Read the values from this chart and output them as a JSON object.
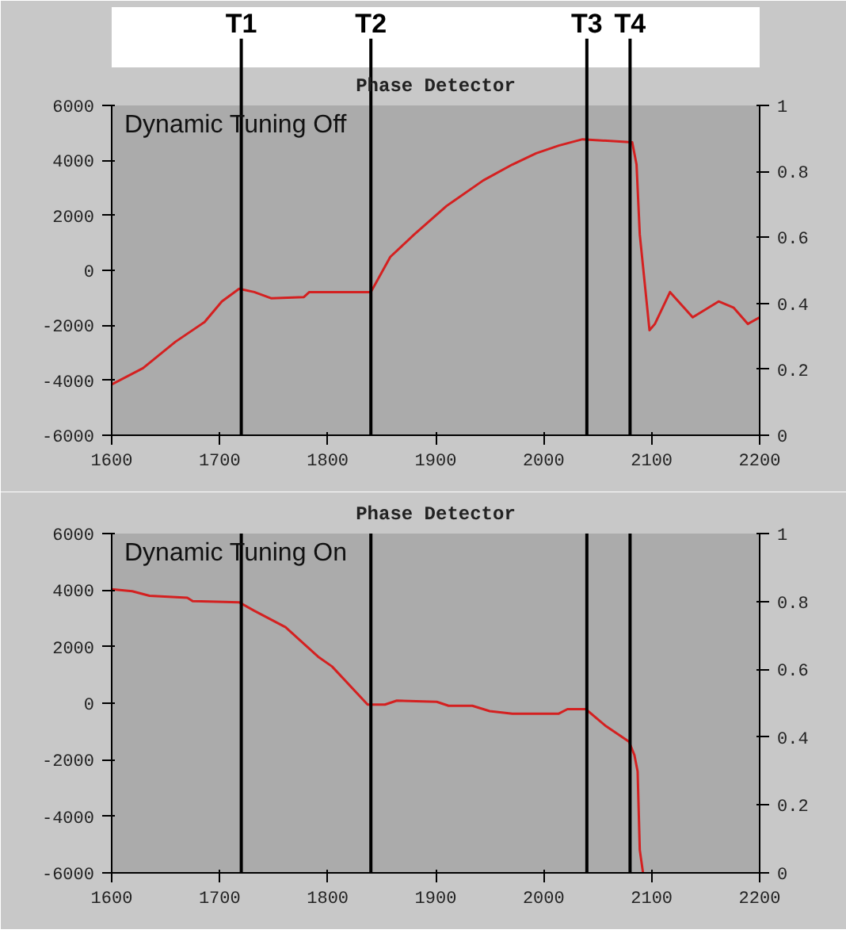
{
  "chart_data": [
    {
      "type": "line",
      "title": "Phase Detector",
      "annotations": [
        "Dynamic Tuning Off"
      ],
      "x": [
        1600,
        1629,
        1659,
        1686,
        1702,
        1718,
        1732,
        1748,
        1778,
        1783,
        1840,
        1858,
        1880,
        1910,
        1944,
        1971,
        1993,
        2014,
        2036,
        2082,
        2086,
        2089,
        2098,
        2103,
        2117,
        2138,
        2162,
        2176,
        2189,
        2200
      ],
      "series": [
        {
          "color": "#d42020",
          "values": [
            -4150,
            -3560,
            -2600,
            -1880,
            -1130,
            -670,
            -790,
            -1020,
            -970,
            -790,
            -790,
            490,
            1300,
            2340,
            3270,
            3850,
            4260,
            4540,
            4770,
            4660,
            3850,
            1300,
            -2180,
            -1950,
            -790,
            -1710,
            -1130,
            -1360,
            -1950,
            -1710
          ]
        }
      ],
      "xlim": [
        1600,
        2200
      ],
      "xticks": [
        1600,
        1700,
        1800,
        1900,
        2000,
        2100,
        2200
      ],
      "ylim": [
        -6000,
        6000
      ],
      "yticks": [
        -6000,
        -4000,
        -2000,
        0,
        2000,
        4000,
        6000
      ],
      "y2lim": [
        0,
        1
      ],
      "y2ticks": [
        0,
        0.2,
        0.4,
        0.6,
        0.8,
        1
      ],
      "ref_lines": [
        {
          "axis": "x",
          "value": 1720,
          "label": "T1"
        },
        {
          "axis": "x",
          "value": 1840,
          "label": "T2"
        },
        {
          "axis": "x",
          "value": 2040,
          "label": "T3"
        },
        {
          "axis": "x",
          "value": 2080,
          "label": "T4"
        }
      ]
    },
    {
      "type": "line",
      "title": "Phase Detector",
      "annotations": [
        "Dynamic Tuning On"
      ],
      "x": [
        1600,
        1619,
        1635,
        1670,
        1675,
        1718,
        1732,
        1761,
        1791,
        1804,
        1837,
        1853,
        1864,
        1901,
        1912,
        1934,
        1950,
        1971,
        2014,
        2022,
        2039,
        2057,
        2079,
        2084,
        2087,
        2089,
        2092
      ],
      "series": [
        {
          "color": "#d42020",
          "values": [
            4030,
            3960,
            3800,
            3730,
            3610,
            3570,
            3270,
            2690,
            1650,
            1300,
            -50,
            -50,
            90,
            50,
            -90,
            -90,
            -280,
            -370,
            -370,
            -210,
            -210,
            -790,
            -1360,
            -1830,
            -2410,
            -5190,
            -6000
          ]
        }
      ],
      "xlim": [
        1600,
        2200
      ],
      "xticks": [
        1600,
        1700,
        1800,
        1900,
        2000,
        2100,
        2200
      ],
      "ylim": [
        -6000,
        6000
      ],
      "yticks": [
        -6000,
        -4000,
        -2000,
        0,
        2000,
        4000,
        6000
      ],
      "y2lim": [
        0,
        1
      ],
      "y2ticks": [
        0,
        0.2,
        0.4,
        0.6,
        0.8,
        1
      ],
      "ref_lines": [
        {
          "axis": "x",
          "value": 1720
        },
        {
          "axis": "x",
          "value": 1840
        },
        {
          "axis": "x",
          "value": 2040
        },
        {
          "axis": "x",
          "value": 2080
        }
      ]
    }
  ]
}
